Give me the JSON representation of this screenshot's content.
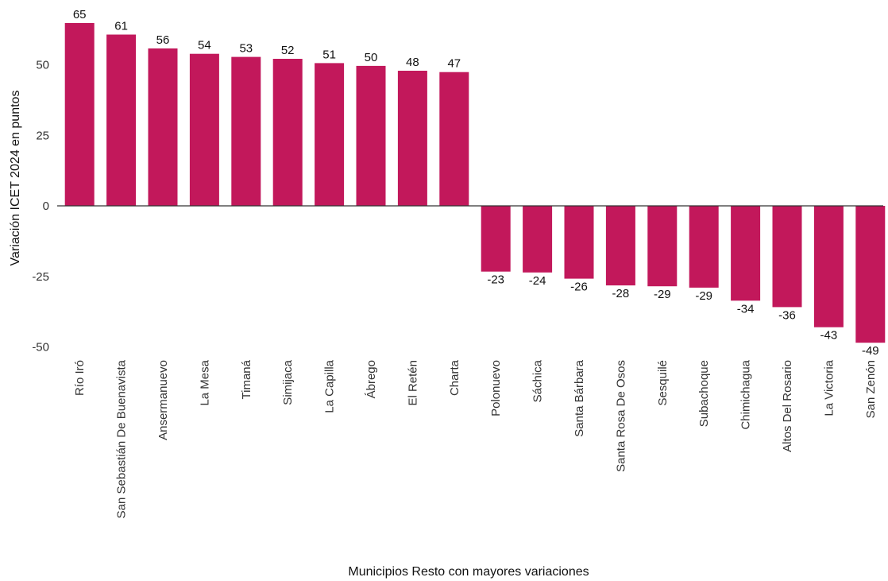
{
  "chart_data": {
    "type": "bar",
    "title": "",
    "xlabel": "Municipios Resto con mayores variaciones",
    "ylabel": "Variación ICET 2024 en puntos",
    "ylim": [
      -52,
      68
    ],
    "yticks": [
      -50,
      -25,
      0,
      25,
      50
    ],
    "grid": false,
    "bar_color": "#C2185B",
    "categories": [
      "Río Iró",
      "San Sebastián De Buenavista",
      "Ansermanuevo",
      "La Mesa",
      "Timaná",
      "Simijaca",
      "La Capilla",
      "Ábrego",
      "El Retén",
      "Charta",
      "Polonuevo",
      "Sáchica",
      "Santa Bárbara",
      "Santa Rosa De Osos",
      "Sesquilé",
      "Subachoque",
      "Chimichagua",
      "Altos Del Rosario",
      "La Victoria",
      "San Zenón"
    ],
    "values": [
      64.8,
      60.7,
      55.8,
      53.9,
      52.8,
      52.1,
      50.6,
      49.6,
      47.9,
      47.4,
      -23.3,
      -23.6,
      -25.8,
      -28.2,
      -28.5,
      -29.0,
      -33.6,
      -35.9,
      -43.0,
      -48.5
    ],
    "labels": [
      "65",
      "61",
      "56",
      "54",
      "53",
      "52",
      "51",
      "50",
      "48",
      "47",
      "-23",
      "-24",
      "-26",
      "-28",
      "-29",
      "-29",
      "-34",
      "-36",
      "-43",
      "-49"
    ]
  }
}
